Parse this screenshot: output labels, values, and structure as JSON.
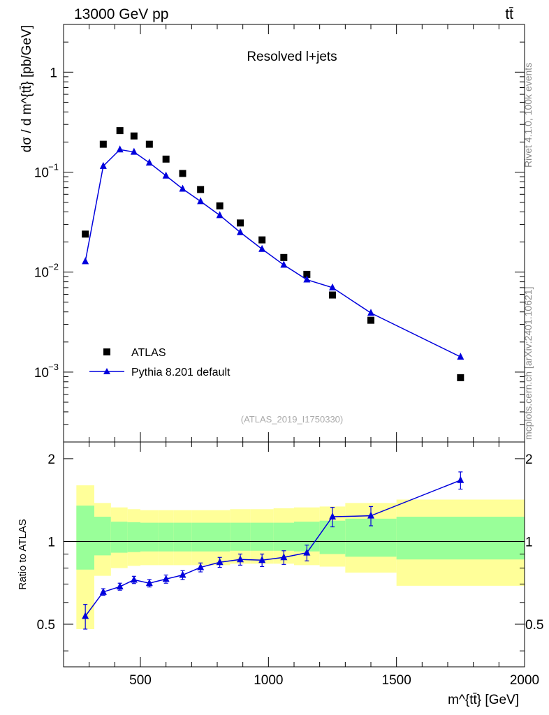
{
  "header": {
    "energy_label": "13000 GeV pp",
    "process_label": "tt̄"
  },
  "side_labels": {
    "rivet": "Rivet 4.1.0,  100k events",
    "mcplots": "mcplots.cern.ch [arXiv:2401.10621]"
  },
  "chart_data": [
    {
      "type": "scatter",
      "title": "Resolved l+jets",
      "analysis_id": "(ATLAS_2019_I1750330)",
      "xlabel": "m^{tt̄} [GeV]",
      "ylabel": "dσ / d m^{tt̄} [pb/GeV]",
      "yscale": "log",
      "xlim": [
        200,
        2000
      ],
      "ylim": [
        0.0002,
        3
      ],
      "y_tick_labels": [
        "10^-3",
        "10^-2",
        "10^-1",
        "1"
      ],
      "legend_placement": "bottom-left",
      "series": [
        {
          "name": "ATLAS",
          "marker": "square",
          "color": "#000000",
          "x": [
            285,
            355,
            420,
            475,
            535,
            600,
            665,
            735,
            810,
            890,
            975,
            1060,
            1150,
            1250,
            1400,
            1750
          ],
          "values": [
            0.024,
            0.19,
            0.26,
            0.23,
            0.19,
            0.135,
            0.097,
            0.067,
            0.046,
            0.031,
            0.021,
            0.014,
            0.0095,
            0.0059,
            0.0033,
            0.00088
          ]
        },
        {
          "name": "Pythia 8.201 default",
          "marker": "triangle",
          "color": "#0000dd",
          "x": [
            285,
            355,
            420,
            475,
            535,
            600,
            665,
            735,
            810,
            890,
            975,
            1060,
            1150,
            1250,
            1400,
            1750
          ],
          "values": [
            0.0128,
            0.115,
            0.168,
            0.159,
            0.124,
            0.092,
            0.068,
            0.051,
            0.037,
            0.025,
            0.017,
            0.0118,
            0.0084,
            0.007,
            0.0039,
            0.00142
          ]
        }
      ]
    },
    {
      "type": "scatter",
      "ylabel": "Ratio to ATLAS",
      "xlim": [
        200,
        2000
      ],
      "ylim": [
        0.35,
        2.3
      ],
      "x_ticks": [
        500,
        1000,
        1500,
        2000
      ],
      "y_ticks": [
        0.5,
        1,
        2
      ],
      "reference_line": 1,
      "bands": [
        {
          "x_low": 250,
          "x_high": 320,
          "inner": [
            0.79,
            1.35
          ],
          "outer": [
            0.48,
            1.6
          ]
        },
        {
          "x_low": 320,
          "x_high": 385,
          "inner": [
            0.89,
            1.23
          ],
          "outer": [
            0.75,
            1.38
          ]
        },
        {
          "x_low": 385,
          "x_high": 450,
          "inner": [
            0.91,
            1.18
          ],
          "outer": [
            0.8,
            1.33
          ]
        },
        {
          "x_low": 450,
          "x_high": 500,
          "inner": [
            0.915,
            1.175
          ],
          "outer": [
            0.815,
            1.31
          ]
        },
        {
          "x_low": 500,
          "x_high": 570,
          "inner": [
            0.92,
            1.17
          ],
          "outer": [
            0.82,
            1.3
          ]
        },
        {
          "x_low": 570,
          "x_high": 630,
          "inner": [
            0.92,
            1.17
          ],
          "outer": [
            0.82,
            1.3
          ]
        },
        {
          "x_low": 630,
          "x_high": 700,
          "inner": [
            0.92,
            1.17
          ],
          "outer": [
            0.82,
            1.3
          ]
        },
        {
          "x_low": 700,
          "x_high": 770,
          "inner": [
            0.92,
            1.17
          ],
          "outer": [
            0.82,
            1.3
          ]
        },
        {
          "x_low": 770,
          "x_high": 850,
          "inner": [
            0.92,
            1.17
          ],
          "outer": [
            0.82,
            1.3
          ]
        },
        {
          "x_low": 850,
          "x_high": 930,
          "inner": [
            0.925,
            1.17
          ],
          "outer": [
            0.83,
            1.31
          ]
        },
        {
          "x_low": 930,
          "x_high": 1020,
          "inner": [
            0.925,
            1.17
          ],
          "outer": [
            0.83,
            1.31
          ]
        },
        {
          "x_low": 1020,
          "x_high": 1100,
          "inner": [
            0.925,
            1.17
          ],
          "outer": [
            0.83,
            1.32
          ]
        },
        {
          "x_low": 1100,
          "x_high": 1200,
          "inner": [
            0.92,
            1.18
          ],
          "outer": [
            0.82,
            1.33
          ]
        },
        {
          "x_low": 1200,
          "x_high": 1300,
          "inner": [
            0.9,
            1.19
          ],
          "outer": [
            0.81,
            1.34
          ]
        },
        {
          "x_low": 1300,
          "x_high": 1500,
          "inner": [
            0.88,
            1.21
          ],
          "outer": [
            0.77,
            1.38
          ]
        },
        {
          "x_low": 1500,
          "x_high": 2000,
          "inner": [
            0.86,
            1.23
          ],
          "outer": [
            0.69,
            1.42
          ]
        }
      ],
      "series": [
        {
          "name": "Pythia 8.201 default",
          "color": "#0000dd",
          "x": [
            285,
            355,
            420,
            475,
            535,
            600,
            665,
            735,
            810,
            890,
            975,
            1060,
            1150,
            1250,
            1400,
            1750
          ],
          "values": [
            0.535,
            0.655,
            0.685,
            0.725,
            0.705,
            0.73,
            0.755,
            0.805,
            0.84,
            0.86,
            0.855,
            0.875,
            0.91,
            1.23,
            1.24,
            1.67
          ],
          "errors": [
            0.055,
            0.018,
            0.02,
            0.022,
            0.022,
            0.025,
            0.028,
            0.03,
            0.035,
            0.04,
            0.045,
            0.05,
            0.06,
            0.1,
            0.1,
            0.12
          ]
        }
      ]
    }
  ]
}
